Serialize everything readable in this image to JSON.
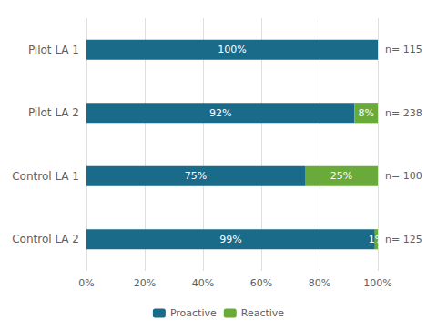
{
  "chart_data": {
    "type": "bar",
    "orientation": "horizontal",
    "stacked": true,
    "categories": [
      "Pilot LA 1",
      "Pilot LA 2",
      "Control LA 1",
      "Control LA 2"
    ],
    "series": [
      {
        "name": "Proactive",
        "color": "#1a6b8a",
        "values": [
          100,
          92,
          75,
          99
        ],
        "value_labels": [
          "100%",
          "92%",
          "75%",
          "99%"
        ]
      },
      {
        "name": "Reactive",
        "color": "#6aaa3a",
        "values": [
          0,
          8,
          25,
          1
        ],
        "value_labels": [
          null,
          "8%",
          "25%",
          "1%"
        ]
      }
    ],
    "data_labels": true,
    "annotations": [
      {
        "text": "n= 115",
        "category": "Pilot LA 1"
      },
      {
        "text": "n= 238",
        "category": "Pilot LA 2"
      },
      {
        "text": "n= 100",
        "category": "Control LA 1"
      },
      {
        "text": "n= 125",
        "category": "Control LA 2"
      }
    ],
    "xlim": [
      0,
      100
    ],
    "xticks": [
      {
        "value": 0,
        "label": "0%"
      },
      {
        "value": 20,
        "label": "20%"
      },
      {
        "value": 40,
        "label": "40%"
      },
      {
        "value": 60,
        "label": "60%"
      },
      {
        "value": 80,
        "label": "80%"
      },
      {
        "value": 100,
        "label": "100%"
      }
    ],
    "grid": true,
    "legend": "bottom"
  }
}
